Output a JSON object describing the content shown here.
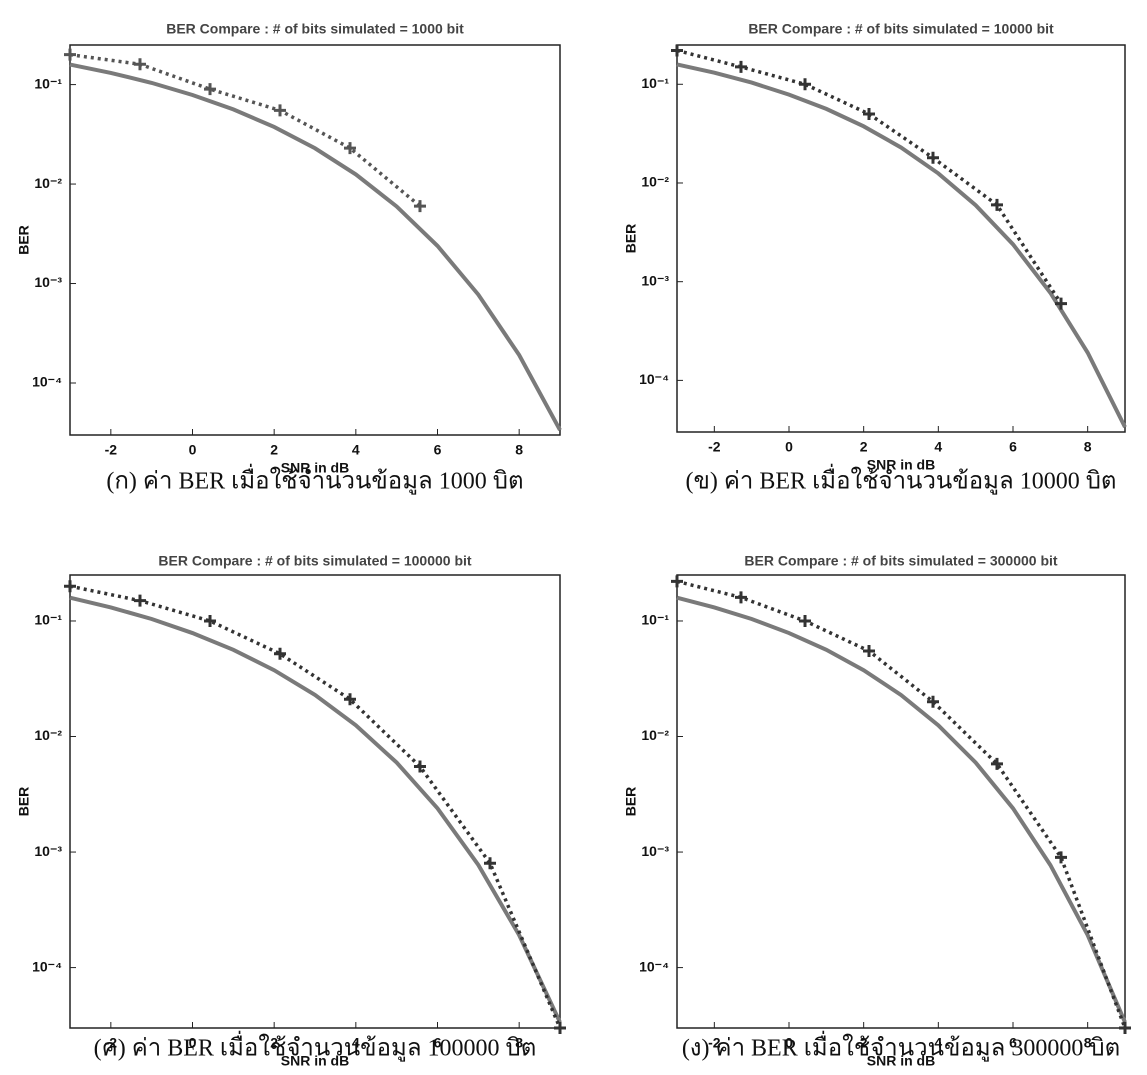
{
  "chart_data": [
    {
      "type": "line",
      "title": "BER Compare : # of bits simulated = 1000 bit",
      "xlabel": "SNR in dB",
      "ylabel": "BER",
      "caption": "(ก) ค่า BER เมื่อใช้จำนวนข้อมูล 1000 บิต",
      "log_y": true,
      "grid": false,
      "xlim": [
        -3,
        9
      ],
      "ylim": [
        3e-05,
        0.25
      ],
      "xticks": [
        -2,
        0,
        2,
        4,
        6,
        8
      ],
      "yticks": [
        {
          "value": 0.0001,
          "label": "10⁻⁴"
        },
        {
          "value": 0.001,
          "label": "10⁻³"
        },
        {
          "value": 0.01,
          "label": "10⁻²"
        },
        {
          "value": 0.1,
          "label": "10⁻¹"
        }
      ],
      "series": [
        {
          "color": "#7a7a7a",
          "style": "solid",
          "x": [
            -3,
            -2,
            -1,
            0,
            1,
            2,
            3,
            4,
            5,
            6,
            7,
            8,
            9
          ],
          "values": [
            0.159,
            0.131,
            0.104,
            0.0786,
            0.0563,
            0.0375,
            0.0229,
            0.0125,
            0.00595,
            0.00239,
            0.000773,
            0.000191,
            3.36e-05
          ]
        },
        {
          "color": "#555555",
          "style": "dotted",
          "marker": "+",
          "x": [
            -3,
            -1.286,
            0.429,
            2.143,
            3.857,
            5.571,
            7.286,
            9
          ],
          "values": [
            0.2,
            0.16,
            0.09,
            0.055,
            0.023,
            0.006,
            null,
            null
          ]
        }
      ]
    },
    {
      "type": "line",
      "title": "BER Compare : # of bits simulated = 10000 bit",
      "xlabel": "SNR in dB",
      "ylabel": "BER",
      "caption": "(ข) ค่า BER เมื่อใช้จำนวนข้อมูล 10000 บิต",
      "log_y": true,
      "grid": false,
      "xlim": [
        -3,
        9
      ],
      "ylim": [
        3e-05,
        0.25
      ],
      "xticks": [
        -2,
        0,
        2,
        4,
        6,
        8
      ],
      "yticks": [
        {
          "value": 0.0001,
          "label": "10⁻⁴"
        },
        {
          "value": 0.001,
          "label": "10⁻³"
        },
        {
          "value": 0.01,
          "label": "10⁻²"
        },
        {
          "value": 0.1,
          "label": "10⁻¹"
        }
      ],
      "series": [
        {
          "color": "#7a7a7a",
          "style": "solid",
          "x": [
            -3,
            -2,
            -1,
            0,
            1,
            2,
            3,
            4,
            5,
            6,
            7,
            8,
            9
          ],
          "values": [
            0.159,
            0.131,
            0.104,
            0.0786,
            0.0563,
            0.0375,
            0.0229,
            0.0125,
            0.00595,
            0.00239,
            0.000773,
            0.000191,
            3.36e-05
          ]
        },
        {
          "color": "#333333",
          "style": "dotted",
          "marker": "+",
          "x": [
            -3,
            -1.286,
            0.429,
            2.143,
            3.857,
            5.571,
            7.286,
            9
          ],
          "values": [
            0.22,
            0.15,
            0.1,
            0.05,
            0.018,
            0.006,
            0.0006,
            null
          ]
        }
      ]
    },
    {
      "type": "line",
      "title": "BER Compare : # of bits simulated = 100000 bit",
      "xlabel": "SNR in dB",
      "ylabel": "BER",
      "caption": "(ค) ค่า BER เมื่อใช้จำนวนข้อมูล 100000 บิต",
      "log_y": true,
      "grid": false,
      "xlim": [
        -3,
        9
      ],
      "ylim": [
        3e-05,
        0.25
      ],
      "xticks": [
        -2,
        0,
        2,
        4,
        6,
        8
      ],
      "yticks": [
        {
          "value": 0.0001,
          "label": "10⁻⁴"
        },
        {
          "value": 0.001,
          "label": "10⁻³"
        },
        {
          "value": 0.01,
          "label": "10⁻²"
        },
        {
          "value": 0.1,
          "label": "10⁻¹"
        }
      ],
      "series": [
        {
          "color": "#7a7a7a",
          "style": "solid",
          "x": [
            -3,
            -2,
            -1,
            0,
            1,
            2,
            3,
            4,
            5,
            6,
            7,
            8,
            9
          ],
          "values": [
            0.159,
            0.131,
            0.104,
            0.0786,
            0.0563,
            0.0375,
            0.0229,
            0.0125,
            0.00595,
            0.00239,
            0.000773,
            0.000191,
            3.36e-05
          ]
        },
        {
          "color": "#333333",
          "style": "dotted",
          "marker": "+",
          "x": [
            -3,
            -1.286,
            0.429,
            2.143,
            3.857,
            5.571,
            7.286,
            9
          ],
          "values": [
            0.2,
            0.15,
            0.1,
            0.052,
            0.021,
            0.0055,
            0.0008,
            3e-05
          ]
        }
      ]
    },
    {
      "type": "line",
      "title": "BER Compare : # of bits simulated = 300000 bit",
      "xlabel": "SNR in dB",
      "ylabel": "BER",
      "caption": "(ง) ค่า BER เมื่อใช้จำนวนข้อมูล 300000 บิต",
      "log_y": true,
      "grid": false,
      "xlim": [
        -3,
        9
      ],
      "ylim": [
        3e-05,
        0.25
      ],
      "xticks": [
        -2,
        0,
        2,
        4,
        6,
        8
      ],
      "yticks": [
        {
          "value": 0.0001,
          "label": "10⁻⁴"
        },
        {
          "value": 0.001,
          "label": "10⁻³"
        },
        {
          "value": 0.01,
          "label": "10⁻²"
        },
        {
          "value": 0.1,
          "label": "10⁻¹"
        }
      ],
      "series": [
        {
          "color": "#7a7a7a",
          "style": "solid",
          "x": [
            -3,
            -2,
            -1,
            0,
            1,
            2,
            3,
            4,
            5,
            6,
            7,
            8,
            9
          ],
          "values": [
            0.159,
            0.131,
            0.104,
            0.0786,
            0.0563,
            0.0375,
            0.0229,
            0.0125,
            0.00595,
            0.00239,
            0.000773,
            0.000191,
            3.36e-05
          ]
        },
        {
          "color": "#333333",
          "style": "dotted",
          "marker": "+",
          "x": [
            -3,
            -1.286,
            0.429,
            2.143,
            3.857,
            5.571,
            7.286,
            9
          ],
          "values": [
            0.22,
            0.16,
            0.1,
            0.055,
            0.02,
            0.0058,
            0.0009,
            3e-05
          ]
        }
      ]
    }
  ]
}
